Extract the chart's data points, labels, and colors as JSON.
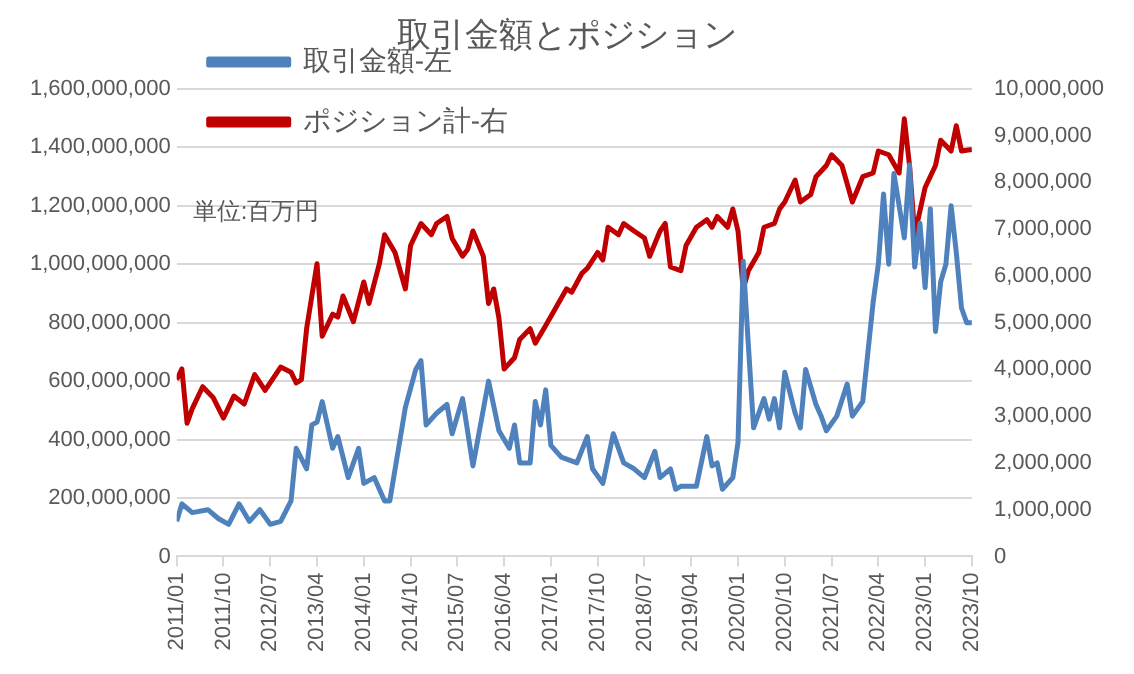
{
  "chart_data": {
    "type": "line",
    "title": "取引金額とポジション",
    "annotations": [
      "単位:百万円"
    ],
    "legend": "top left",
    "grid": "y",
    "marker": "none",
    "line_style": "solid",
    "xlim": [
      "2011-01",
      "2023-10"
    ],
    "xticks": [
      {
        "value": "2011-01",
        "label": "2011/01"
      },
      {
        "value": "2011-10",
        "label": "2011/10"
      },
      {
        "value": "2012-07",
        "label": "2012/07"
      },
      {
        "value": "2013-04",
        "label": "2013/04"
      },
      {
        "value": "2014-01",
        "label": "2014/01"
      },
      {
        "value": "2014-10",
        "label": "2014/10"
      },
      {
        "value": "2015-07",
        "label": "2015/07"
      },
      {
        "value": "2016-04",
        "label": "2016/04"
      },
      {
        "value": "2017-01",
        "label": "2017/01"
      },
      {
        "value": "2017-10",
        "label": "2017/10"
      },
      {
        "value": "2018-07",
        "label": "2018/07"
      },
      {
        "value": "2019-04",
        "label": "2019/04"
      },
      {
        "value": "2020-01",
        "label": "2020/01"
      },
      {
        "value": "2020-10",
        "label": "2020/10"
      },
      {
        "value": "2021-07",
        "label": "2021/07"
      },
      {
        "value": "2022-04",
        "label": "2022/04"
      },
      {
        "value": "2023-01",
        "label": "2023/01"
      },
      {
        "value": "2023-10",
        "label": "2023/10"
      }
    ],
    "ylim": [
      0,
      1600000000
    ],
    "yticks": [
      0,
      {
        "value": 200000000,
        "label": "200,000,000"
      },
      {
        "value": 400000000,
        "label": "400,000,000"
      },
      {
        "value": 600000000,
        "label": "600,000,000"
      },
      {
        "value": 800000000,
        "label": "800,000,000"
      },
      {
        "value": 1000000000,
        "label": "1,000,000,000"
      },
      {
        "value": 1200000000,
        "label": "1,200,000,000"
      },
      {
        "value": 1400000000,
        "label": "1,400,000,000"
      },
      {
        "value": 1600000000,
        "label": "1,600,000,000"
      }
    ],
    "y2lim": [
      0,
      10000000
    ],
    "y2ticks": [
      0,
      {
        "value": 1000000,
        "label": "1,000,000"
      },
      {
        "value": 2000000,
        "label": "2,000,000"
      },
      {
        "value": 3000000,
        "label": "3,000,000"
      },
      {
        "value": 4000000,
        "label": "4,000,000"
      },
      {
        "value": 5000000,
        "label": "5,000,000"
      },
      {
        "value": 6000000,
        "label": "6,000,000"
      },
      {
        "value": 7000000,
        "label": "7,000,000"
      },
      {
        "value": 8000000,
        "label": "8,000,000"
      },
      {
        "value": 9000000,
        "label": "9,000,000"
      },
      {
        "value": 10000000,
        "label": "10,000,000"
      }
    ],
    "series": [
      {
        "name": "取引金額-左",
        "color": "#4f81bd",
        "axis": "y",
        "x": [
          "2011-01",
          "2011-02",
          "2011-04",
          "2011-07",
          "2011-09",
          "2011-11",
          "2012-01",
          "2012-03",
          "2012-05",
          "2012-07",
          "2012-09",
          "2012-11",
          "2012-12",
          "2013-02",
          "2013-03",
          "2013-04",
          "2013-05",
          "2013-07",
          "2013-08",
          "2013-10",
          "2013-12",
          "2014-01",
          "2014-03",
          "2014-05",
          "2014-06",
          "2014-09",
          "2014-11",
          "2014-12",
          "2015-01",
          "2015-03",
          "2015-05",
          "2015-06",
          "2015-08",
          "2015-10",
          "2016-01",
          "2016-03",
          "2016-05",
          "2016-06",
          "2016-07",
          "2016-09",
          "2016-10",
          "2016-11",
          "2016-12",
          "2017-01",
          "2017-03",
          "2017-06",
          "2017-08",
          "2017-09",
          "2017-11",
          "2018-01",
          "2018-03",
          "2018-05",
          "2018-07",
          "2018-09",
          "2018-10",
          "2018-12",
          "2019-01",
          "2019-02",
          "2019-04",
          "2019-05",
          "2019-07",
          "2019-08",
          "2019-09",
          "2019-10",
          "2019-12",
          "2020-01",
          "2020-02",
          "2020-03",
          "2020-04",
          "2020-06",
          "2020-07",
          "2020-08",
          "2020-09",
          "2020-10",
          "2020-12",
          "2021-01",
          "2021-02",
          "2021-04",
          "2021-05",
          "2021-06",
          "2021-08",
          "2021-10",
          "2021-11",
          "2022-01",
          "2022-03",
          "2022-04",
          "2022-05",
          "2022-06",
          "2022-07",
          "2022-09",
          "2022-10",
          "2022-11",
          "2022-12",
          "2023-01",
          "2023-02",
          "2023-03",
          "2023-04",
          "2023-05",
          "2023-06",
          "2023-07",
          "2023-08",
          "2023-09",
          "2023-10"
        ],
        "values": [
          120000000,
          180000000,
          150000000,
          160000000,
          130000000,
          110000000,
          180000000,
          120000000,
          160000000,
          110000000,
          120000000,
          190000000,
          370000000,
          300000000,
          450000000,
          460000000,
          530000000,
          370000000,
          410000000,
          270000000,
          370000000,
          250000000,
          270000000,
          190000000,
          190000000,
          510000000,
          640000000,
          670000000,
          450000000,
          490000000,
          520000000,
          420000000,
          540000000,
          310000000,
          600000000,
          430000000,
          370000000,
          450000000,
          320000000,
          320000000,
          530000000,
          450000000,
          570000000,
          380000000,
          340000000,
          320000000,
          410000000,
          300000000,
          250000000,
          420000000,
          320000000,
          300000000,
          270000000,
          360000000,
          270000000,
          300000000,
          230000000,
          240000000,
          240000000,
          240000000,
          410000000,
          310000000,
          320000000,
          230000000,
          270000000,
          390000000,
          1010000000,
          720000000,
          440000000,
          540000000,
          470000000,
          540000000,
          440000000,
          630000000,
          490000000,
          440000000,
          640000000,
          520000000,
          480000000,
          430000000,
          480000000,
          590000000,
          480000000,
          530000000,
          870000000,
          1000000000,
          1240000000,
          1000000000,
          1310000000,
          1090000000,
          1340000000,
          990000000,
          1140000000,
          920000000,
          1190000000,
          770000000,
          940000000,
          1000000000,
          1200000000,
          1040000000,
          850000000,
          800000000,
          800000000
        ]
      },
      {
        "name": "ポジション計-右",
        "color": "#c00000",
        "axis": "y2",
        "x": [
          "2011-01",
          "2011-02",
          "2011-03",
          "2011-04",
          "2011-06",
          "2011-08",
          "2011-10",
          "2011-12",
          "2012-02",
          "2012-04",
          "2012-06",
          "2012-09",
          "2012-11",
          "2012-12",
          "2013-01",
          "2013-02",
          "2013-04",
          "2013-05",
          "2013-07",
          "2013-08",
          "2013-09",
          "2013-11",
          "2014-01",
          "2014-02",
          "2014-04",
          "2014-05",
          "2014-07",
          "2014-09",
          "2014-10",
          "2014-12",
          "2015-02",
          "2015-03",
          "2015-05",
          "2015-06",
          "2015-08",
          "2015-09",
          "2015-10",
          "2015-12",
          "2016-01",
          "2016-02",
          "2016-03",
          "2016-04",
          "2016-06",
          "2016-07",
          "2016-09",
          "2016-10",
          "2016-12",
          "2017-02",
          "2017-04",
          "2017-05",
          "2017-07",
          "2017-08",
          "2017-10",
          "2017-11",
          "2017-12",
          "2018-02",
          "2018-03",
          "2018-05",
          "2018-07",
          "2018-08",
          "2018-10",
          "2018-11",
          "2018-12",
          "2019-02",
          "2019-03",
          "2019-05",
          "2019-07",
          "2019-08",
          "2019-09",
          "2019-11",
          "2019-12",
          "2020-01",
          "2020-02",
          "2020-03",
          "2020-05",
          "2020-06",
          "2020-08",
          "2020-09",
          "2020-10",
          "2020-12",
          "2021-01",
          "2021-03",
          "2021-04",
          "2021-06",
          "2021-07",
          "2021-09",
          "2021-11",
          "2022-01",
          "2022-03",
          "2022-04",
          "2022-06",
          "2022-08",
          "2022-09",
          "2022-10",
          "2022-11",
          "2023-01",
          "2023-03",
          "2023-04",
          "2023-06",
          "2023-07",
          "2023-08",
          "2023-10"
        ],
        "values": [
          3780000,
          4010000,
          2850000,
          3160000,
          3630000,
          3400000,
          2960000,
          3430000,
          3260000,
          3890000,
          3550000,
          4050000,
          3940000,
          3710000,
          3780000,
          4870000,
          6260000,
          4710000,
          5180000,
          5120000,
          5570000,
          5020000,
          5870000,
          5410000,
          6260000,
          6880000,
          6500000,
          5720000,
          6650000,
          7120000,
          6880000,
          7120000,
          7270000,
          6800000,
          6420000,
          6570000,
          6960000,
          6420000,
          5410000,
          5720000,
          5100000,
          4010000,
          4250000,
          4640000,
          4870000,
          4560000,
          4940000,
          5330000,
          5720000,
          5650000,
          6060000,
          6160000,
          6500000,
          6340000,
          7040000,
          6880000,
          7120000,
          6960000,
          6810000,
          6420000,
          6960000,
          7120000,
          6190000,
          6110000,
          6650000,
          7040000,
          7200000,
          7040000,
          7270000,
          7040000,
          7430000,
          6960000,
          5720000,
          6110000,
          6500000,
          7040000,
          7120000,
          7430000,
          7580000,
          8050000,
          7580000,
          7740000,
          8120000,
          8360000,
          8590000,
          8360000,
          7580000,
          8120000,
          8200000,
          8670000,
          8590000,
          8200000,
          9360000,
          8360000,
          6880000,
          7890000,
          8360000,
          8900000,
          8670000,
          9210000,
          8670000,
          8700000
        ]
      }
    ]
  }
}
